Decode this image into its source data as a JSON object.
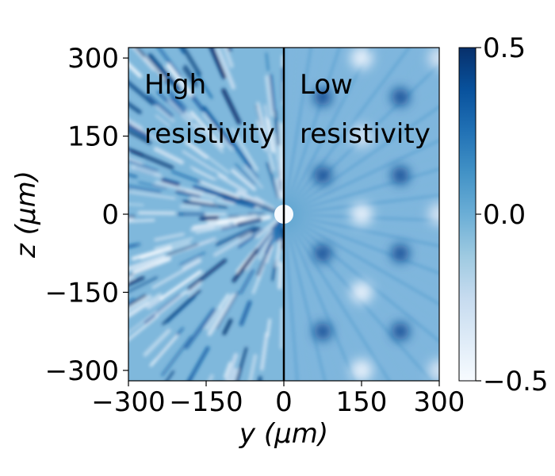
{
  "chart_data": {
    "type": "heatmap",
    "title": "",
    "xlabel": "y (μm)",
    "ylabel": "z (μm)",
    "xlim": [
      -300,
      300
    ],
    "ylim": [
      -320,
      320
    ],
    "x_ticks": [
      -300,
      -150,
      0,
      150,
      300
    ],
    "y_ticks": [
      300,
      150,
      0,
      -150,
      -300
    ],
    "x_tick_labels": [
      "−300",
      "−150",
      "0",
      "150",
      "300"
    ],
    "y_tick_labels": [
      "300",
      "150",
      "0",
      "−150",
      "−300"
    ],
    "colorbar": {
      "range": [
        -0.5,
        0.5
      ],
      "ticks": [
        0.5,
        0.0,
        -0.5
      ],
      "tick_labels": [
        "0.5",
        "0.0",
        "−0.5"
      ],
      "colormap": "Blues",
      "color_low": "#f7fbff",
      "color_high": "#08306b"
    },
    "divider_at_y": 0,
    "regions": [
      {
        "label_line1": "High",
        "label_line2": "resistivity",
        "side": "left",
        "pattern": "radial-streaks"
      },
      {
        "label_line1": "Low",
        "label_line2": "resistivity",
        "side": "right",
        "pattern": "periodic-spots"
      }
    ],
    "spots": [
      {
        "y": 75,
        "z": 225,
        "value": 0.4
      },
      {
        "y": 225,
        "z": 225,
        "value": 0.4
      },
      {
        "y": 75,
        "z": 75,
        "value": 0.4
      },
      {
        "y": 225,
        "z": 75,
        "value": 0.4
      },
      {
        "y": 75,
        "z": -75,
        "value": 0.4
      },
      {
        "y": 225,
        "z": -75,
        "value": 0.4
      },
      {
        "y": 75,
        "z": -225,
        "value": 0.4
      },
      {
        "y": 225,
        "z": -225,
        "value": 0.4
      },
      {
        "y": 150,
        "z": 300,
        "value": -0.4
      },
      {
        "y": 150,
        "z": 0,
        "value": -0.4
      },
      {
        "y": 150,
        "z": -150,
        "value": -0.4
      },
      {
        "y": 150,
        "z": -300,
        "value": -0.4
      },
      {
        "y": 150,
        "z": 150,
        "value": -0.3
      },
      {
        "y": 300,
        "z": 0,
        "value": -0.3
      },
      {
        "y": 300,
        "z": 300,
        "value": -0.3
      },
      {
        "y": 300,
        "z": -300,
        "value": -0.3
      }
    ],
    "center_hole": {
      "y": 0,
      "z": 0,
      "value": -0.5
    }
  }
}
